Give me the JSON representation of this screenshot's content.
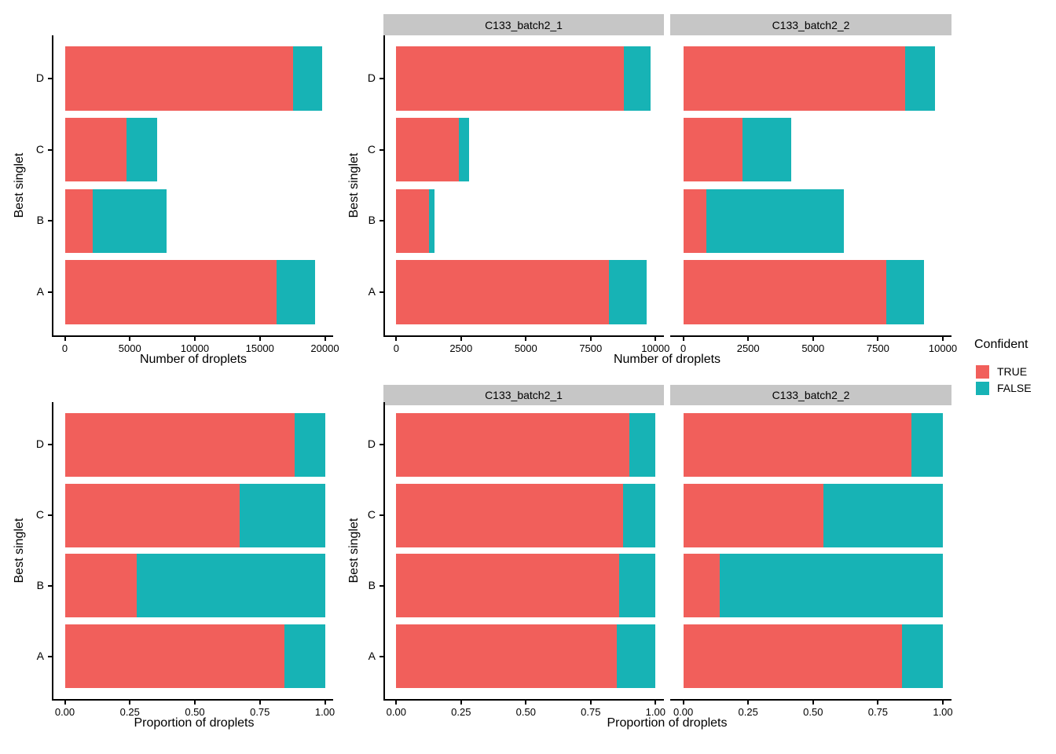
{
  "figure": {
    "y_axis_title": "Best singlet",
    "count_xlabel": "Number of droplets",
    "prop_xlabel": "Proportion of droplets",
    "facet_labels": [
      "C133_batch2_1",
      "C133_batch2_2"
    ]
  },
  "legend": {
    "title": "Confident",
    "items": [
      {
        "label": "TRUE",
        "color": "#F15F5B"
      },
      {
        "label": "FALSE",
        "color": "#17B3B5"
      }
    ]
  },
  "colors": {
    "true": "#F15F5B",
    "false": "#17B3B5",
    "strip_bg": "#C6C6C6",
    "axis": "#000000"
  },
  "chart_data": [
    {
      "id": "count-combined",
      "type": "bar",
      "orientation": "horizontal",
      "stacked": true,
      "facet_label": "",
      "categories": [
        "A",
        "B",
        "C",
        "D"
      ],
      "series": [
        {
          "name": "TRUE",
          "values": [
            16300,
            2150,
            4765,
            17570
          ]
        },
        {
          "name": "FALSE",
          "values": [
            2950,
            5670,
            2310,
            2230
          ]
        }
      ],
      "xlabel": "Number of droplets",
      "ylabel": "Best singlet",
      "xlim": [
        0,
        20000
      ],
      "xticks": [
        0,
        5000,
        10000,
        15000,
        20000
      ],
      "xtick_labels": [
        "0",
        "5000",
        "10000",
        "15000",
        "20000"
      ],
      "legend_title": "Confident",
      "grid": false
    },
    {
      "id": "count-batch1",
      "type": "bar",
      "orientation": "horizontal",
      "stacked": true,
      "facet_label": "C133_batch2_1",
      "categories": [
        "A",
        "B",
        "C",
        "D"
      ],
      "series": [
        {
          "name": "TRUE",
          "values": [
            8210,
            1265,
            2420,
            8790
          ]
        },
        {
          "name": "FALSE",
          "values": [
            1460,
            220,
            380,
            1010
          ]
        }
      ],
      "xlabel": "Number of droplets",
      "ylabel": "Best singlet",
      "xlim": [
        0,
        10000
      ],
      "xticks": [
        0,
        2500,
        5000,
        7500,
        10000
      ],
      "xtick_labels": [
        "0",
        "2500",
        "5000",
        "7500",
        "10000"
      ],
      "legend_title": "Confident",
      "grid": false
    },
    {
      "id": "count-batch2",
      "type": "bar",
      "orientation": "horizontal",
      "stacked": true,
      "facet_label": "C133_batch2_2",
      "categories": [
        "A",
        "B",
        "C",
        "D"
      ],
      "series": [
        {
          "name": "TRUE",
          "values": [
            7820,
            880,
            2270,
            8550
          ]
        },
        {
          "name": "FALSE",
          "values": [
            1450,
            5310,
            1900,
            1160
          ]
        }
      ],
      "xlabel": "Number of droplets",
      "ylabel": "Best singlet",
      "xlim": [
        0,
        10000
      ],
      "xticks": [
        0,
        2500,
        5000,
        7500,
        10000
      ],
      "xtick_labels": [
        "0",
        "2500",
        "5000",
        "7500",
        "10000"
      ],
      "legend_title": "Confident",
      "grid": false
    },
    {
      "id": "prop-combined",
      "type": "bar",
      "orientation": "horizontal",
      "stacked": true,
      "facet_label": "",
      "categories": [
        "A",
        "B",
        "C",
        "D"
      ],
      "series": [
        {
          "name": "TRUE",
          "values": [
            0.845,
            0.275,
            0.672,
            0.885
          ]
        },
        {
          "name": "FALSE",
          "values": [
            0.155,
            0.725,
            0.328,
            0.115
          ]
        }
      ],
      "xlabel": "Proportion of droplets",
      "ylabel": "Best singlet",
      "xlim": [
        0,
        1.0
      ],
      "xticks": [
        0,
        0.25,
        0.5,
        0.75,
        1.0
      ],
      "xtick_labels": [
        "0.00",
        "0.25",
        "0.50",
        "0.75",
        "1.00"
      ],
      "legend_title": "Confident",
      "grid": false
    },
    {
      "id": "prop-batch1",
      "type": "bar",
      "orientation": "horizontal",
      "stacked": true,
      "facet_label": "C133_batch2_1",
      "categories": [
        "A",
        "B",
        "C",
        "D"
      ],
      "series": [
        {
          "name": "TRUE",
          "values": [
            0.85,
            0.86,
            0.876,
            0.899
          ]
        },
        {
          "name": "FALSE",
          "values": [
            0.15,
            0.14,
            0.124,
            0.101
          ]
        }
      ],
      "xlabel": "Proportion of droplets",
      "ylabel": "Best singlet",
      "xlim": [
        0,
        1.0
      ],
      "xticks": [
        0,
        0.25,
        0.5,
        0.75,
        1.0
      ],
      "xtick_labels": [
        "0.00",
        "0.25",
        "0.50",
        "0.75",
        "1.00"
      ],
      "legend_title": "Confident",
      "grid": false
    },
    {
      "id": "prop-batch2",
      "type": "bar",
      "orientation": "horizontal",
      "stacked": true,
      "facet_label": "C133_batch2_2",
      "categories": [
        "A",
        "B",
        "C",
        "D"
      ],
      "series": [
        {
          "name": "TRUE",
          "values": [
            0.843,
            0.141,
            0.54,
            0.88
          ]
        },
        {
          "name": "FALSE",
          "values": [
            0.157,
            0.859,
            0.46,
            0.12
          ]
        }
      ],
      "xlabel": "Proportion of droplets",
      "ylabel": "Best singlet",
      "xlim": [
        0,
        1.0
      ],
      "xticks": [
        0,
        0.25,
        0.5,
        0.75,
        1.0
      ],
      "xtick_labels": [
        "0.00",
        "0.25",
        "0.50",
        "0.75",
        "1.00"
      ],
      "legend_title": "Confident",
      "grid": false
    }
  ]
}
